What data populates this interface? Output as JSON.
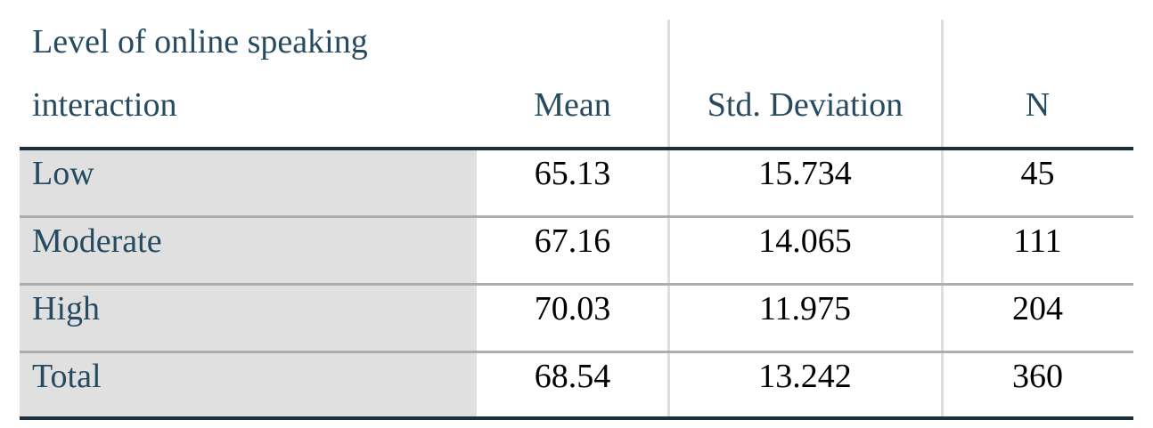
{
  "table": {
    "header": [
      "Level of online speaking interaction",
      "Mean",
      "Std. Deviation",
      "N"
    ],
    "rows": [
      [
        "Low",
        65.13,
        15.734,
        45
      ],
      [
        "Moderate",
        67.16,
        14.065,
        111
      ],
      [
        "High",
        70.03,
        11.975,
        204
      ],
      [
        "Total",
        68.54,
        13.242,
        360
      ]
    ]
  }
}
